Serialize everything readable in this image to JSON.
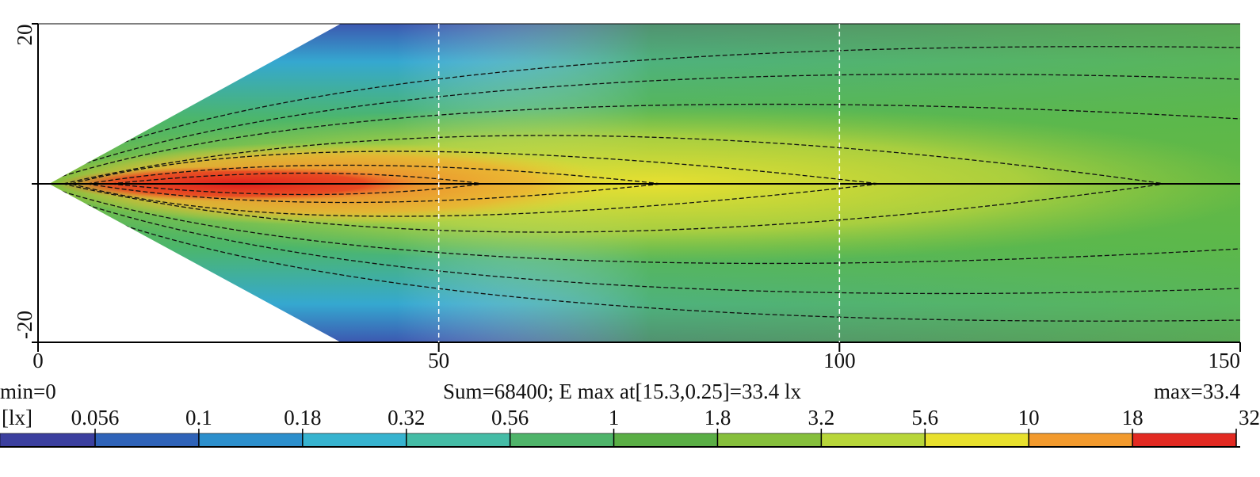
{
  "chart_data": {
    "type": "heatmap",
    "xlim": [
      0,
      150
    ],
    "ylim": [
      -20,
      20
    ],
    "xticks": [
      0,
      50,
      100,
      150
    ],
    "yticks": [
      -20,
      20
    ],
    "grid": true,
    "min_label": "min=0",
    "summary": "Sum=68400; E max at[15.3,0.25]=33.4 lx",
    "max_label": "max=33.4",
    "colorbar": {
      "unit": "[lx]",
      "levels": [
        0.056,
        0.1,
        0.18,
        0.32,
        0.56,
        1,
        1.8,
        3.2,
        5.6,
        10,
        18,
        32
      ],
      "colors": [
        "#3b3f9e",
        "#2f63b8",
        "#2c8fcc",
        "#37b3cf",
        "#45bca6",
        "#4fb46a",
        "#5aae45",
        "#86bf3c",
        "#b8d63a",
        "#e8e02e",
        "#f29a2e",
        "#e22a22"
      ]
    }
  }
}
